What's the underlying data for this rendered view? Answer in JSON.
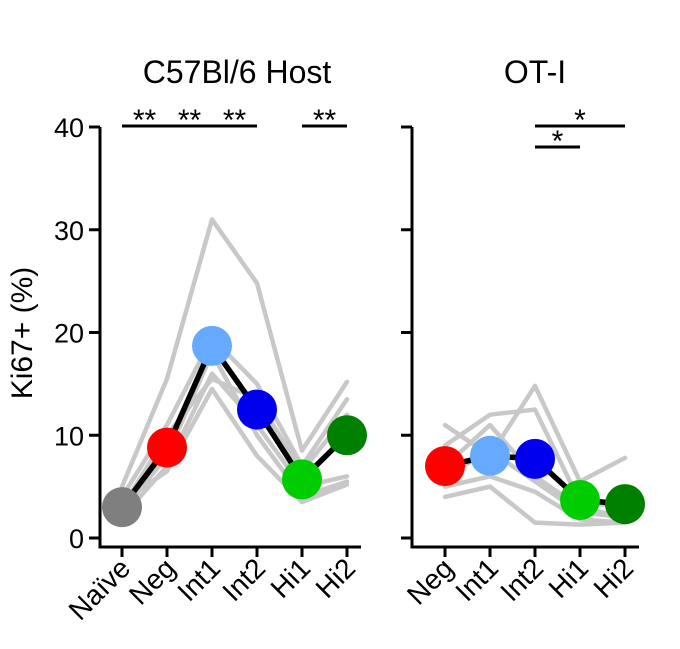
{
  "chart_data": [
    {
      "type": "line",
      "title": "C57Bl/6 Host",
      "ylabel": "Ki67+ (%)",
      "ylim": [
        0,
        40
      ],
      "yticks": [
        0,
        10,
        20,
        30,
        40
      ],
      "categories": [
        "Naïve",
        "Neg",
        "Int1",
        "Int2",
        "Hi1",
        "Hi2"
      ],
      "mean": {
        "values": [
          3.0,
          8.8,
          18.7,
          12.5,
          5.7,
          10.0
        ],
        "colors": [
          "#7f7f7f",
          "#ff0000",
          "#66aaff",
          "#0000ee",
          "#00cc00",
          "#008000"
        ]
      },
      "replicates": [
        [
          5.0,
          15.5,
          31.0,
          24.8,
          8.5,
          15.2
        ],
        [
          4.0,
          11.0,
          19.5,
          15.0,
          7.0,
          13.5
        ],
        [
          3.0,
          10.0,
          15.5,
          13.5,
          6.5,
          12.0
        ],
        [
          2.5,
          8.0,
          18.0,
          10.0,
          4.0,
          5.5
        ],
        [
          2.0,
          7.0,
          16.0,
          11.0,
          5.0,
          6.0
        ],
        [
          3.5,
          6.5,
          14.5,
          8.0,
          3.5,
          5.2
        ]
      ],
      "significance": [
        {
          "from": 0,
          "to": 1,
          "label": "**"
        },
        {
          "from": 1,
          "to": 2,
          "label": "**"
        },
        {
          "from": 2,
          "to": 3,
          "label": "**"
        },
        {
          "from": 4,
          "to": 5,
          "label": "**"
        }
      ]
    },
    {
      "type": "line",
      "title": "OT-I",
      "ylabel": "",
      "ylim": [
        0,
        40
      ],
      "yticks": [
        0,
        10,
        20,
        30,
        40
      ],
      "categories": [
        "Neg",
        "Int1",
        "Int2",
        "Hi1",
        "Hi2"
      ],
      "mean": {
        "values": [
          7.0,
          8.0,
          7.7,
          3.7,
          3.3
        ],
        "colors": [
          "#ff0000",
          "#66aaff",
          "#0000ee",
          "#00cc00",
          "#008000"
        ]
      },
      "replicates": [
        [
          11.0,
          8.0,
          14.8,
          5.5,
          7.8
        ],
        [
          9.0,
          12.0,
          12.5,
          3.5,
          3.0
        ],
        [
          7.0,
          11.0,
          6.0,
          3.0,
          2.0
        ],
        [
          6.0,
          8.5,
          5.5,
          2.5,
          2.0
        ],
        [
          5.0,
          6.0,
          4.5,
          1.8,
          1.5
        ],
        [
          4.0,
          5.0,
          1.5,
          1.3,
          1.5
        ]
      ],
      "significance": [
        {
          "from": 2,
          "to": 4,
          "label": "*"
        },
        {
          "from": 2,
          "to": 3,
          "label": "*"
        }
      ]
    }
  ]
}
